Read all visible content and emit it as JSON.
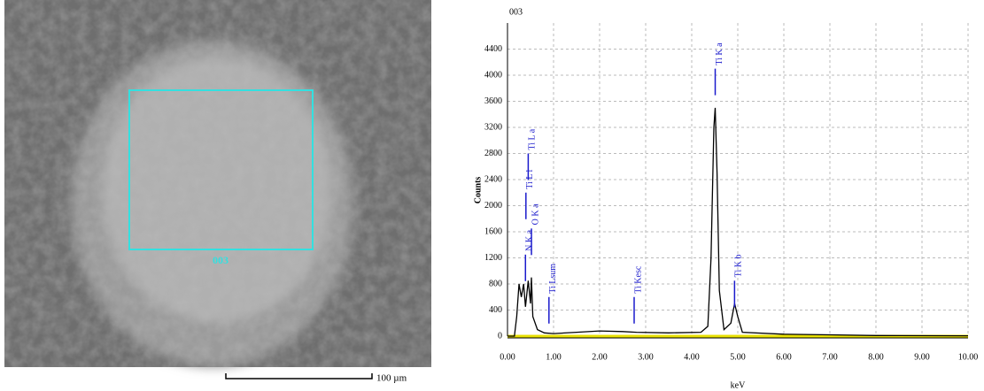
{
  "image": {
    "roi_label": "003",
    "scale_bar_label": "100 µm"
  },
  "chart_data": {
    "type": "line",
    "title": "003",
    "x_label": "keV",
    "y_label": "Counts",
    "x": [
      0.0,
      0.15,
      0.2,
      0.25,
      0.3,
      0.35,
      0.39,
      0.45,
      0.5,
      0.52,
      0.55,
      0.65,
      0.8,
      1.0,
      1.5,
      2.0,
      2.5,
      2.8,
      3.5,
      4.2,
      4.35,
      4.42,
      4.48,
      4.51,
      4.55,
      4.6,
      4.7,
      4.85,
      4.93,
      5.0,
      5.1,
      6.0,
      7.0,
      8.0,
      10.0
    ],
    "values": [
      0,
      0,
      300,
      800,
      600,
      800,
      450,
      850,
      500,
      900,
      300,
      100,
      50,
      40,
      60,
      80,
      70,
      60,
      50,
      60,
      150,
      1200,
      3200,
      3500,
      2500,
      700,
      100,
      200,
      500,
      300,
      60,
      30,
      20,
      10,
      5
    ],
    "color": "#000000",
    "annotations": [
      {
        "label": "N K a",
        "x": 0.39,
        "y": 1250
      },
      {
        "label": "O K a",
        "x": 0.52,
        "y": 1650
      },
      {
        "label": "Ti L l",
        "x": 0.4,
        "y": 2200
      },
      {
        "label": "Ti L a",
        "x": 0.45,
        "y": 2800
      },
      {
        "label": "Ti Lsum",
        "x": 0.9,
        "y": 600
      },
      {
        "label": "Ti Kesc",
        "x": 2.75,
        "y": 600
      },
      {
        "label": "Ti K a",
        "x": 4.51,
        "y": 4100
      },
      {
        "label": "Ti K b",
        "x": 4.93,
        "y": 850
      }
    ],
    "xlim": [
      0,
      10
    ],
    "xticks": [
      {
        "value": 0,
        "label": "0.00"
      },
      {
        "value": 1,
        "label": "1.00"
      },
      {
        "value": 2,
        "label": "2.00"
      },
      {
        "value": 3,
        "label": "3.00"
      },
      {
        "value": 4,
        "label": "4.00"
      },
      {
        "value": 5,
        "label": "5.00"
      },
      {
        "value": 6,
        "label": "6.00"
      },
      {
        "value": 7,
        "label": "7.00"
      },
      {
        "value": 8,
        "label": "8.00"
      },
      {
        "value": 9,
        "label": "9.00"
      },
      {
        "value": 10,
        "label": "10.00"
      }
    ],
    "ylim": [
      0,
      4800
    ],
    "yticks": [
      0,
      400,
      800,
      1200,
      1600,
      2000,
      2400,
      2800,
      3200,
      3600,
      4000,
      4400
    ],
    "grid": true
  }
}
